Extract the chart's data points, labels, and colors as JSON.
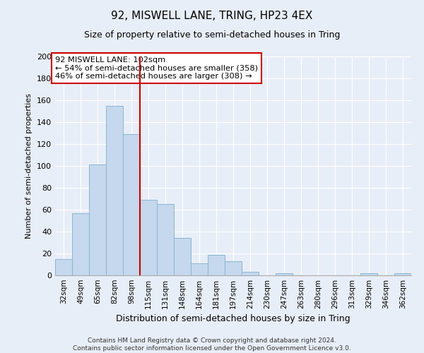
{
  "title": "92, MISWELL LANE, TRING, HP23 4EX",
  "subtitle": "Size of property relative to semi-detached houses in Tring",
  "xlabel": "Distribution of semi-detached houses by size in Tring",
  "ylabel": "Number of semi-detached properties",
  "categories": [
    "32sqm",
    "49sqm",
    "65sqm",
    "82sqm",
    "98sqm",
    "115sqm",
    "131sqm",
    "148sqm",
    "164sqm",
    "181sqm",
    "197sqm",
    "214sqm",
    "230sqm",
    "247sqm",
    "263sqm",
    "280sqm",
    "296sqm",
    "313sqm",
    "329sqm",
    "346sqm",
    "362sqm"
  ],
  "values": [
    15,
    57,
    101,
    155,
    129,
    69,
    65,
    34,
    11,
    19,
    13,
    3,
    0,
    2,
    0,
    0,
    0,
    0,
    2,
    0,
    2
  ],
  "bar_color": "#c5d8ed",
  "bar_edge_color": "#8ab4d4",
  "marker_line_index": 4,
  "marker_line_color": "#cc0000",
  "annotation_title": "92 MISWELL LANE: 102sqm",
  "annotation_line1": "← 54% of semi-detached houses are smaller (358)",
  "annotation_line2": "46% of semi-detached houses are larger (308) →",
  "annotation_box_color": "#ffffff",
  "annotation_box_edge": "#cc0000",
  "ylim": [
    0,
    200
  ],
  "yticks": [
    0,
    20,
    40,
    60,
    80,
    100,
    120,
    140,
    160,
    180,
    200
  ],
  "footer_line1": "Contains HM Land Registry data © Crown copyright and database right 2024.",
  "footer_line2": "Contains public sector information licensed under the Open Government Licence v3.0.",
  "background_color": "#e8eef8",
  "plot_bg_color": "#e8eef8",
  "grid_color": "#ffffff",
  "title_fontsize": 11,
  "subtitle_fontsize": 9,
  "xlabel_fontsize": 9,
  "ylabel_fontsize": 8,
  "tick_fontsize": 8,
  "xtick_fontsize": 7.5,
  "footer_fontsize": 6.5
}
